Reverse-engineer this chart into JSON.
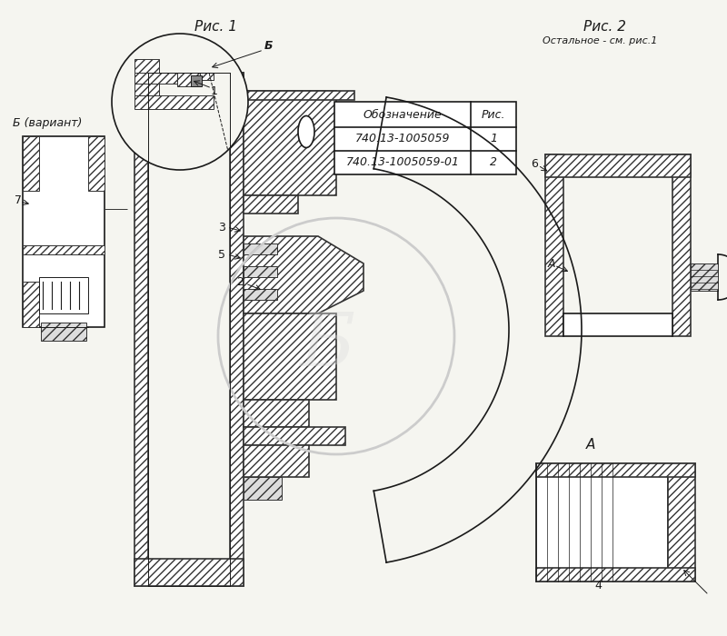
{
  "bg_color": "#f5f5f0",
  "line_color": "#1a1a1a",
  "hatch_color": "#1a1a1a",
  "title_rис1": "Рис. 1",
  "title_rис2": "Рис. 2",
  "subtitle_rис2": "Остальное - см. рис.1",
  "label_B": "Б",
  "label_B_variant": "Б (вариант)",
  "label_A": "А",
  "label_1": "1",
  "label_2": "2",
  "label_3": "3",
  "label_4": "4",
  "label_5": "5",
  "label_6": "6",
  "label_7": "7",
  "table_header_col1": "Обозначение",
  "table_header_col2": "Рис.",
  "table_row1_col1": "740.13-1005059",
  "table_row1_col2": "1",
  "table_row2_col1": "740.13-1005059-01",
  "table_row2_col2": "2",
  "watermark_text": "Б",
  "font_size_title": 11,
  "font_size_label": 9,
  "font_size_table": 9
}
